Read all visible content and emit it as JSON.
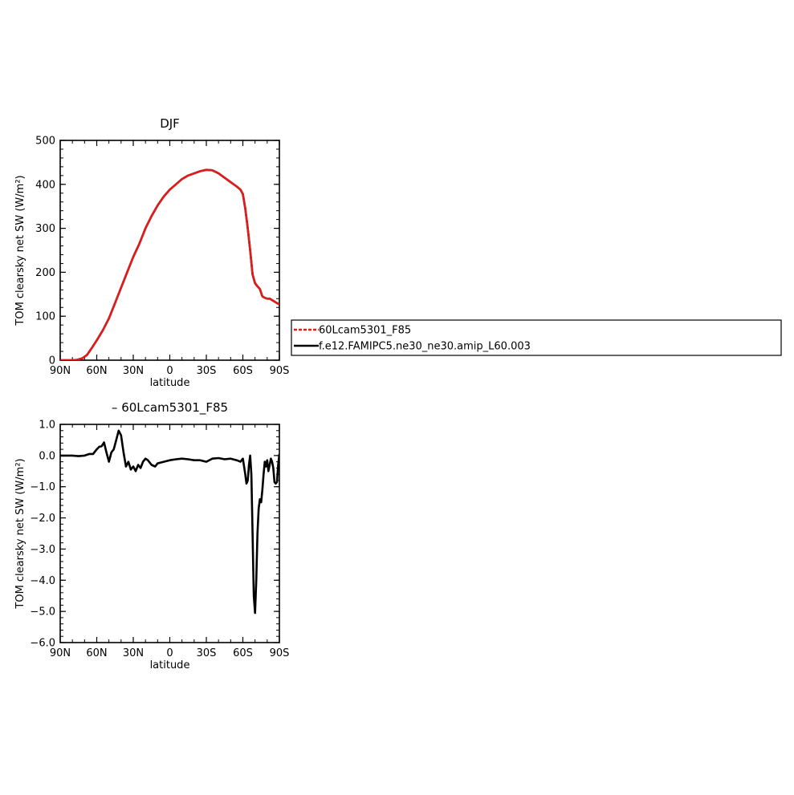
{
  "chart_data": [
    {
      "type": "line",
      "title": "DJF",
      "xlabel": "latitude",
      "ylabel": "TOM clearsky net SW (W/m²)",
      "xlim": [
        90,
        -90
      ],
      "ylim": [
        0,
        500
      ],
      "xticks": [
        {
          "value": 90,
          "label": "90N"
        },
        {
          "value": 60,
          "label": "60N"
        },
        {
          "value": 30,
          "label": "30N"
        },
        {
          "value": 0,
          "label": "0"
        },
        {
          "value": -30,
          "label": "30S"
        },
        {
          "value": -60,
          "label": "60S"
        },
        {
          "value": -90,
          "label": "90S"
        }
      ],
      "yticks": [
        {
          "value": 0,
          "label": "0"
        },
        {
          "value": 100,
          "label": "100"
        },
        {
          "value": 200,
          "label": "200"
        },
        {
          "value": 300,
          "label": "300"
        },
        {
          "value": 400,
          "label": "400"
        },
        {
          "value": 500,
          "label": "500"
        }
      ],
      "series": [
        {
          "name": "f.e12.FAMIPC5.ne30_ne30.amip_L60.003",
          "color": "#000000",
          "x": [
            90,
            85,
            80,
            76,
            72,
            68,
            64,
            60,
            55,
            50,
            45,
            40,
            35,
            30,
            25,
            20,
            15,
            10,
            5,
            0,
            -5,
            -10,
            -15,
            -20,
            -25,
            -30,
            -35,
            -40,
            -45,
            -50,
            -55,
            -58,
            -60,
            -62,
            -64,
            -66,
            -68,
            -70,
            -72,
            -74,
            -76,
            -78,
            -80,
            -82,
            -85,
            -88,
            -90
          ],
          "y": [
            0,
            0,
            0,
            1,
            4,
            12,
            28,
            45,
            68,
            95,
            130,
            165,
            200,
            235,
            265,
            300,
            328,
            352,
            372,
            388,
            400,
            412,
            420,
            425,
            430,
            433,
            432,
            425,
            415,
            405,
            395,
            388,
            378,
            345,
            300,
            250,
            195,
            175,
            168,
            162,
            145,
            142,
            140,
            140,
            135,
            130,
            127
          ]
        },
        {
          "name": "60Lcam5301_F85",
          "color": "#e11a1a",
          "x": [
            90,
            85,
            80,
            76,
            72,
            68,
            64,
            60,
            55,
            50,
            45,
            40,
            35,
            30,
            25,
            20,
            15,
            10,
            5,
            0,
            -5,
            -10,
            -15,
            -20,
            -25,
            -30,
            -35,
            -40,
            -45,
            -50,
            -55,
            -58,
            -60,
            -62,
            -64,
            -66,
            -68,
            -70,
            -72,
            -74,
            -76,
            -78,
            -80,
            -82,
            -85,
            -88,
            -90
          ],
          "y": [
            0,
            0,
            0,
            1,
            4,
            12,
            28,
            45,
            68,
            95,
            130,
            165,
            200,
            235,
            265,
            300,
            328,
            352,
            372,
            388,
            400,
            412,
            420,
            425,
            430,
            433,
            432,
            425,
            415,
            405,
            395,
            388,
            378,
            345,
            300,
            250,
            195,
            175,
            168,
            162,
            145,
            142,
            140,
            140,
            135,
            130,
            127
          ]
        }
      ],
      "legend": {
        "placement": "right",
        "entries": [
          {
            "label": "60Lcam5301_F85",
            "color": "#e11a1a",
            "dash": true
          },
          {
            "label": "f.e12.FAMIPC5.ne30_ne30.amip_L60.003",
            "color": "#000000",
            "dash": false
          }
        ]
      }
    },
    {
      "type": "line",
      "title": "– 60Lcam5301_F85",
      "xlabel": "latitude",
      "ylabel": "TOM clearsky net SW (W/m²)",
      "xlim": [
        90,
        -90
      ],
      "ylim": [
        -6.0,
        1.0
      ],
      "xticks": [
        {
          "value": 90,
          "label": "90N"
        },
        {
          "value": 60,
          "label": "60N"
        },
        {
          "value": 30,
          "label": "30N"
        },
        {
          "value": 0,
          "label": "0"
        },
        {
          "value": -30,
          "label": "30S"
        },
        {
          "value": -60,
          "label": "60S"
        },
        {
          "value": -90,
          "label": "90S"
        }
      ],
      "yticks": [
        {
          "value": 1.0,
          "label": "1.0"
        },
        {
          "value": 0.0,
          "label": "0.0"
        },
        {
          "value": -1.0,
          "label": "−1.0"
        },
        {
          "value": -2.0,
          "label": "−2.0"
        },
        {
          "value": -3.0,
          "label": "−3.0"
        },
        {
          "value": -4.0,
          "label": "−4.0"
        },
        {
          "value": -5.0,
          "label": "−5.0"
        },
        {
          "value": -6.0,
          "label": "−6.0"
        }
      ],
      "series": [
        {
          "color": "#000000",
          "x": [
            90,
            85,
            80,
            75,
            70,
            66,
            63,
            60,
            58,
            56,
            54,
            52,
            50,
            48,
            46,
            44,
            42,
            40,
            38,
            36,
            34,
            32,
            30,
            28,
            26,
            24,
            22,
            20,
            18,
            15,
            12,
            10,
            5,
            0,
            -5,
            -10,
            -15,
            -20,
            -25,
            -30,
            -35,
            -40,
            -45,
            -50,
            -55,
            -58,
            -60,
            -62,
            -63,
            -64,
            -65,
            -66,
            -67,
            -68,
            -69,
            -70,
            -71,
            -72,
            -73,
            -74,
            -75,
            -76,
            -77,
            -78,
            -79,
            -80,
            -81,
            -82,
            -83,
            -84,
            -85,
            -86,
            -87,
            -88,
            -89,
            -90
          ],
          "y": [
            0.0,
            0.0,
            0.0,
            -0.02,
            0.0,
            0.05,
            0.05,
            0.2,
            0.28,
            0.3,
            0.42,
            0.1,
            -0.2,
            0.1,
            0.2,
            0.5,
            0.8,
            0.65,
            0.1,
            -0.35,
            -0.2,
            -0.45,
            -0.35,
            -0.5,
            -0.3,
            -0.4,
            -0.2,
            -0.1,
            -0.15,
            -0.3,
            -0.35,
            -0.25,
            -0.2,
            -0.15,
            -0.12,
            -0.1,
            -0.12,
            -0.15,
            -0.15,
            -0.2,
            -0.1,
            -0.08,
            -0.12,
            -0.1,
            -0.15,
            -0.2,
            -0.1,
            -0.6,
            -0.9,
            -0.8,
            -0.3,
            0.0,
            -0.6,
            -2.5,
            -4.5,
            -5.05,
            -4.0,
            -2.5,
            -1.7,
            -1.4,
            -1.5,
            -1.1,
            -0.6,
            -0.2,
            -0.35,
            -0.15,
            -0.5,
            -0.3,
            -0.1,
            -0.2,
            -0.4,
            -0.85,
            -0.9,
            -0.85,
            -0.3,
            0.05
          ]
        }
      ]
    }
  ]
}
